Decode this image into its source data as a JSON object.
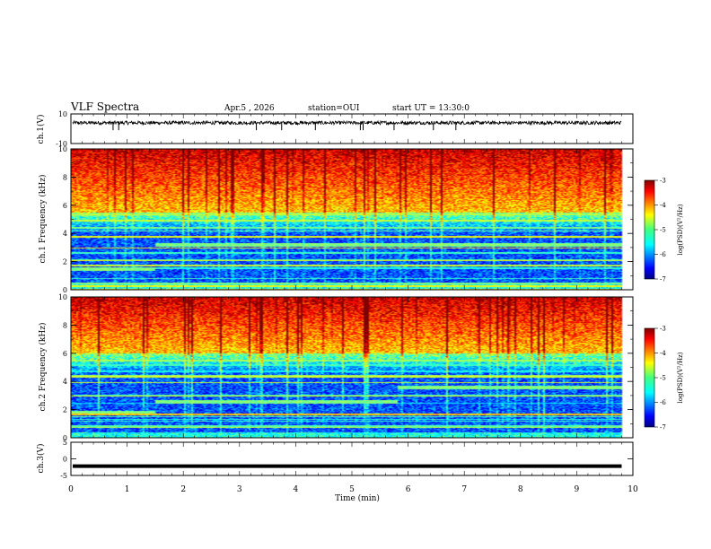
{
  "header": {
    "title": "VLF Spectra",
    "date": "Apr.5 , 2026",
    "station": "station=OUI",
    "start": "start UT = 13:30:0"
  },
  "chart_data": [
    {
      "type": "line",
      "name": "ch1-waveform",
      "ylabel": "ch.1(V)",
      "ylim": [
        -10,
        10
      ],
      "yticks": [
        10,
        -10
      ],
      "xlim": [
        0,
        10
      ],
      "baseline": 4,
      "data_end": 9.8,
      "spikes_x": [
        0.75,
        0.85,
        3.3,
        3.75,
        4.35,
        5.15,
        5.2,
        5.75,
        6.45,
        6.85
      ]
    },
    {
      "type": "heatmap",
      "name": "ch1-spectrogram",
      "ylabel": "ch.1 Frequency (kHz)",
      "ylim": [
        0,
        10
      ],
      "yticks": [
        0,
        2,
        4,
        6,
        8,
        10
      ],
      "xlim": [
        0,
        10
      ],
      "data_end": 9.8,
      "noise_floor_khz": 5.5,
      "band_steps": [
        {
          "x": 1.5,
          "below": 1.5,
          "above": 3.2
        }
      ],
      "colorbar": {
        "label": "log(PSD)(V²/Hz)",
        "min": -7,
        "max": -3,
        "ticks": [
          -3,
          -4,
          -5,
          -6,
          -7
        ]
      }
    },
    {
      "type": "heatmap",
      "name": "ch2-spectrogram",
      "ylabel": "ch.2 Frequency (kHz)",
      "ylim": [
        0,
        10
      ],
      "yticks": [
        0,
        2,
        4,
        6,
        8,
        10
      ],
      "xlim": [
        0,
        10
      ],
      "data_end": 9.8,
      "noise_floor_khz": 6.0,
      "band_steps": [
        {
          "x": 1.5,
          "below": 1.8,
          "above": 2.6
        },
        {
          "x": 5.8,
          "below": 3.4,
          "above": 3.6
        }
      ],
      "colorbar": {
        "label": "log(PSD)(V²/Hz)",
        "min": -7,
        "max": -3,
        "ticks": [
          -3,
          -4,
          -5,
          -6,
          -7
        ]
      }
    },
    {
      "type": "line",
      "name": "ch3-waveform",
      "ylabel": "ch.3(V)",
      "ylim": [
        -5,
        5
      ],
      "yticks": [
        5,
        0,
        -5
      ],
      "xlim": [
        0,
        10
      ],
      "baseline": -2.2,
      "data_end": 9.8
    }
  ],
  "x_axis": {
    "label": "Time (min)",
    "ticks": [
      "0",
      "1",
      "2",
      "3",
      "4",
      "5",
      "6",
      "7",
      "8",
      "9",
      "10"
    ]
  }
}
